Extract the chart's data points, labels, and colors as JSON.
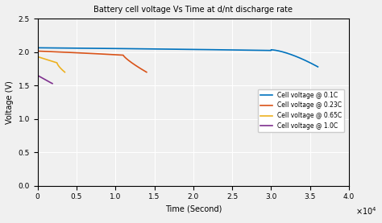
{
  "title": "Battery cell voltage Vs Time at d/nt discharge rate",
  "xlabel": "Time (Second)",
  "ylabel": "Voltage (V)",
  "xlim": [
    0,
    40000
  ],
  "ylim": [
    0,
    2.5
  ],
  "xticks": [
    0,
    5000,
    10000,
    15000,
    20000,
    25000,
    30000,
    35000,
    40000
  ],
  "yticks": [
    0,
    0.5,
    1.0,
    1.5,
    2.0,
    2.5
  ],
  "x_scale_label": "×10⁴",
  "legend": [
    {
      "label": "Cell voltage @ 0.1C",
      "color": "#0072BD"
    },
    {
      "label": "Cell voltage @ 0.23C",
      "color": "#D95319"
    },
    {
      "label": "Cell voltage @ 0.65C",
      "color": "#EDB120"
    },
    {
      "label": "Cell voltage @ 1.0C",
      "color": "#7E2F8E"
    }
  ],
  "background_color": "#f0f0f0",
  "grid_color": "#ffffff"
}
